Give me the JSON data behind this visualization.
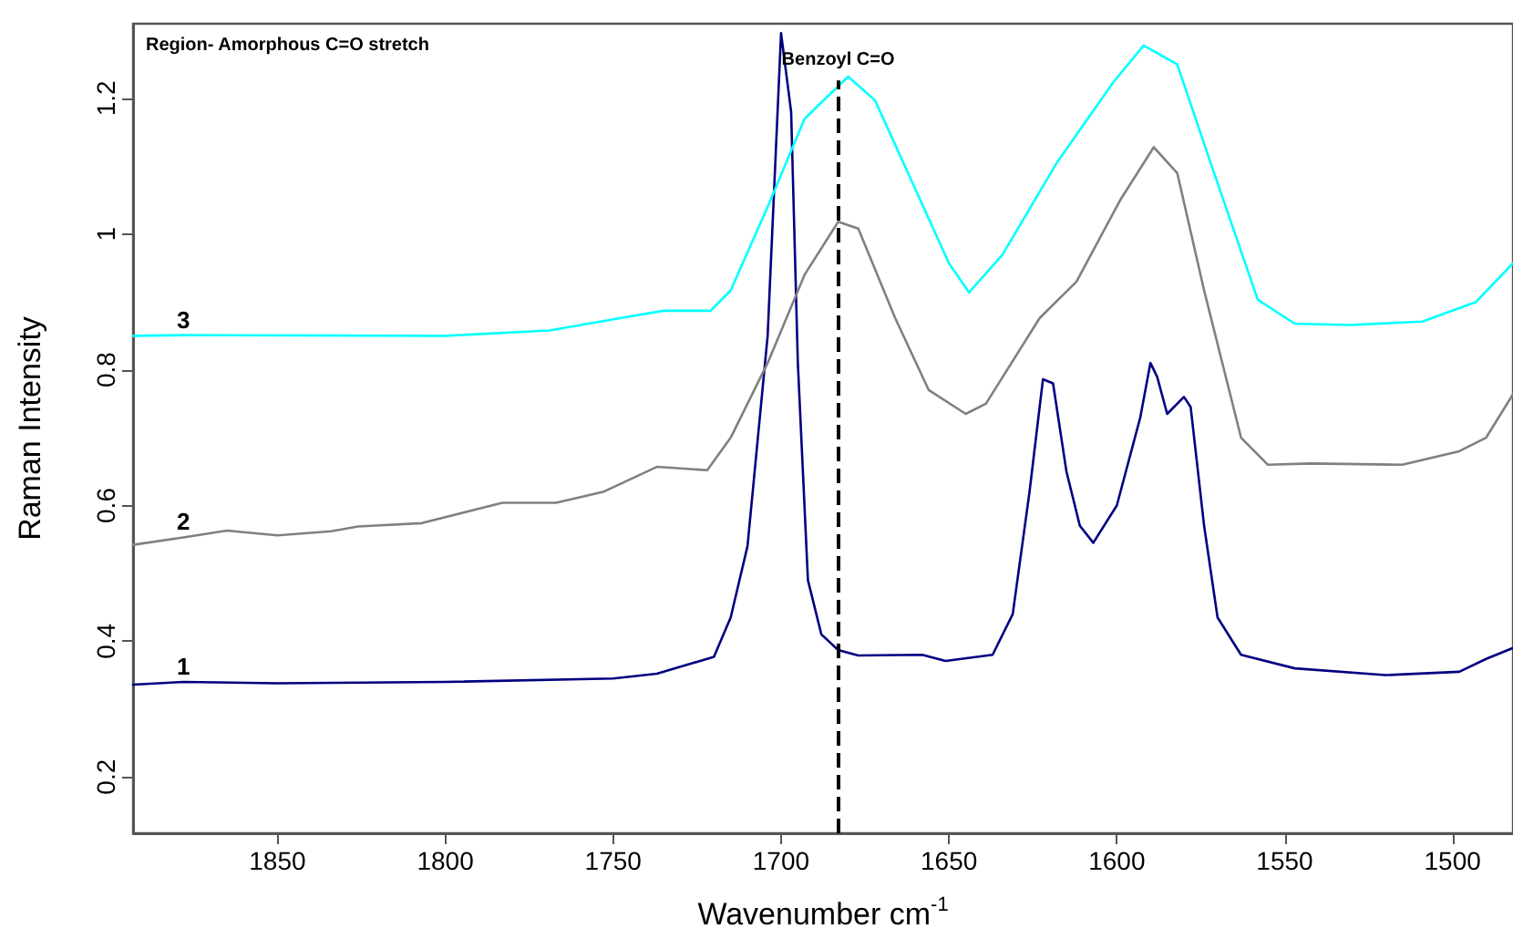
{
  "chart_data": {
    "type": "line",
    "xlabel": "Wavenumber cm$^{-1}$",
    "ylabel": "Raman Intensity",
    "annotations": [
      "Region- Amorphous C=O stretch"
    ],
    "xlim": [
      1893,
      1482
    ],
    "ylim": [
      0.117,
      1.31
    ],
    "xticks": [
      1850,
      1800,
      1750,
      1700,
      1650,
      1600,
      1550,
      1500
    ],
    "yticks": [
      0.2,
      0.4,
      0.6,
      0.8,
      1.0,
      1.2
    ],
    "marker": "none",
    "line_style": "solid",
    "ref_lines": [
      {
        "axis": "x",
        "value": 1683,
        "label": "Benzoyl C=O",
        "color": "#000000",
        "line_style": "dashed"
      }
    ],
    "series": [
      {
        "name": "1",
        "color": "#000080",
        "x": [
          1893,
          1878,
          1850,
          1800,
          1750,
          1737,
          1720,
          1715,
          1710,
          1704,
          1700,
          1697,
          1695,
          1692,
          1688,
          1683,
          1677,
          1658,
          1651,
          1637,
          1631,
          1626,
          1622,
          1619,
          1615,
          1611,
          1607,
          1600,
          1593,
          1590,
          1588,
          1585,
          1580,
          1578,
          1574,
          1570,
          1563,
          1547,
          1520,
          1498,
          1490,
          1482
        ],
        "values": [
          0.336,
          0.34,
          0.338,
          0.34,
          0.345,
          0.352,
          0.377,
          0.435,
          0.54,
          0.85,
          1.296,
          1.18,
          0.81,
          0.49,
          0.41,
          0.387,
          0.379,
          0.38,
          0.371,
          0.38,
          0.44,
          0.62,
          0.786,
          0.78,
          0.65,
          0.57,
          0.545,
          0.6,
          0.73,
          0.81,
          0.79,
          0.735,
          0.76,
          0.745,
          0.57,
          0.435,
          0.38,
          0.36,
          0.35,
          0.355,
          0.374,
          0.39
        ]
      },
      {
        "name": "2",
        "color": "#808080",
        "x": [
          1893,
          1878,
          1865,
          1850,
          1834,
          1826,
          1807,
          1783,
          1767,
          1753,
          1737,
          1722,
          1715,
          1704,
          1693,
          1683,
          1677,
          1666,
          1656,
          1645,
          1639,
          1623,
          1612,
          1599,
          1589,
          1582,
          1574,
          1563,
          1555,
          1542,
          1515,
          1498,
          1490,
          1482
        ],
        "values": [
          0.542,
          0.553,
          0.563,
          0.556,
          0.562,
          0.569,
          0.574,
          0.604,
          0.604,
          0.62,
          0.657,
          0.652,
          0.7,
          0.81,
          0.94,
          1.018,
          1.008,
          0.876,
          0.77,
          0.735,
          0.75,
          0.876,
          0.93,
          1.05,
          1.128,
          1.09,
          0.917,
          0.7,
          0.66,
          0.662,
          0.66,
          0.68,
          0.7,
          0.764
        ]
      },
      {
        "name": "3",
        "color": "#00ffff",
        "x": [
          1893,
          1878,
          1800,
          1769,
          1748,
          1735,
          1721,
          1715,
          1704,
          1693,
          1680,
          1672,
          1661,
          1650,
          1644,
          1634,
          1618,
          1601,
          1592,
          1582,
          1572,
          1558,
          1547,
          1531,
          1509,
          1493,
          1482
        ],
        "values": [
          0.85,
          0.851,
          0.85,
          0.858,
          0.876,
          0.887,
          0.887,
          0.917,
          1.04,
          1.17,
          1.232,
          1.197,
          1.077,
          0.957,
          0.914,
          0.97,
          1.104,
          1.224,
          1.278,
          1.25,
          1.104,
          0.903,
          0.868,
          0.866,
          0.871,
          0.9,
          0.957
        ]
      }
    ]
  }
}
